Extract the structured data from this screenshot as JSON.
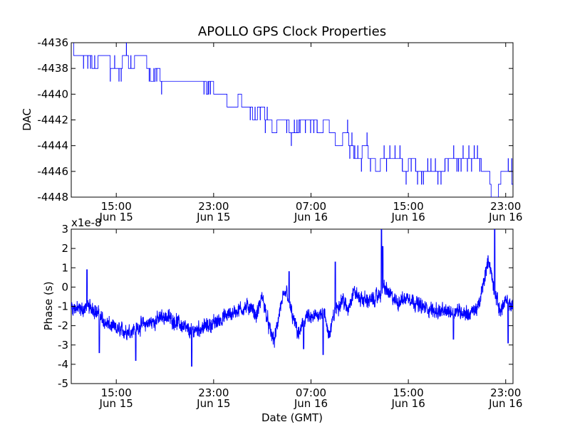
{
  "chart_data": {
    "title": "APOLLO GPS Clock Properties",
    "type": "line",
    "xlabel": "Date (GMT)",
    "x_unit": "hours from Jun 15 00:00 GMT",
    "xlim": [
      11.3,
      47.6
    ],
    "x_ticks": [
      {
        "x": 15,
        "time": "15:00",
        "date": "Jun 15"
      },
      {
        "x": 23,
        "time": "23:00",
        "date": "Jun 15"
      },
      {
        "x": 31,
        "time": "07:00",
        "date": "Jun 16"
      },
      {
        "x": 39,
        "time": "15:00",
        "date": "Jun 16"
      },
      {
        "x": 47,
        "time": "23:00",
        "date": "Jun 16"
      }
    ],
    "panels": [
      {
        "name": "dac",
        "ylabel": "DAC",
        "ylim": [
          -4448,
          -4436
        ],
        "y_ticks": [
          "-4436",
          "-4438",
          "-4440",
          "-4442",
          "-4444",
          "-4446",
          "-4448"
        ],
        "y_tick_values": [
          -4436,
          -4438,
          -4440,
          -4442,
          -4444,
          -4446,
          -4448
        ],
        "series": [
          {
            "name": "DAC",
            "color": "#0000ff",
            "style": "step",
            "steps": [
              [
                11.3,
                -4436
              ],
              [
                11.5,
                -4437
              ],
              [
                13.0,
                -4438
              ],
              [
                13.5,
                -4437
              ],
              [
                14.5,
                -4438
              ],
              [
                15.5,
                -4437
              ],
              [
                16.0,
                -4438
              ],
              [
                16.5,
                -4437
              ],
              [
                17.5,
                -4438
              ],
              [
                17.8,
                -4439
              ],
              [
                18.2,
                -4438
              ],
              [
                18.6,
                -4439
              ],
              [
                22.4,
                -4440
              ],
              [
                22.6,
                -4439
              ],
              [
                23.0,
                -4440
              ],
              [
                24.1,
                -4441
              ],
              [
                25.0,
                -4440
              ],
              [
                25.3,
                -4441
              ],
              [
                26.2,
                -4442
              ],
              [
                26.6,
                -4441
              ],
              [
                27.2,
                -4442
              ],
              [
                27.8,
                -4443
              ],
              [
                28.2,
                -4442
              ],
              [
                29.2,
                -4443
              ],
              [
                30.0,
                -4442
              ],
              [
                31.5,
                -4443
              ],
              [
                32.0,
                -4442
              ],
              [
                32.5,
                -4443
              ],
              [
                33.0,
                -4444
              ],
              [
                33.6,
                -4443
              ],
              [
                34.1,
                -4444
              ],
              [
                34.5,
                -4445
              ],
              [
                35.2,
                -4444
              ],
              [
                35.7,
                -4445
              ],
              [
                36.3,
                -4446
              ],
              [
                36.7,
                -4445
              ],
              [
                38.5,
                -4446
              ],
              [
                39.0,
                -4445
              ],
              [
                39.6,
                -4446
              ],
              [
                42.0,
                -4445
              ],
              [
                45.0,
                -4446
              ],
              [
                45.7,
                -4447
              ],
              [
                45.8,
                -4448
              ],
              [
                46.4,
                -4447
              ],
              [
                46.6,
                -4446
              ],
              [
                47.5,
                -4447
              ],
              [
                47.6,
                -4447
              ]
            ],
            "flicker_ranges": [
              [
                12.3,
                13.6
              ],
              [
                14.5,
                16.6
              ],
              [
                17.7,
                18.9
              ],
              [
                22.2,
                22.8
              ],
              [
                26.0,
                27.4
              ],
              [
                29.0,
                31.8
              ],
              [
                34.0,
                36.0
              ],
              [
                37.0,
                38.5
              ],
              [
                38.5,
                41.8
              ],
              [
                42.0,
                45.0
              ],
              [
                47.2,
                47.5
              ]
            ]
          }
        ]
      },
      {
        "name": "phase",
        "ylabel": "Phase (s)",
        "y_offset_text": "x1e-8",
        "ylim": [
          -5,
          3
        ],
        "y_ticks": [
          "3",
          "2",
          "1",
          "0",
          "-1",
          "-2",
          "-3",
          "-4",
          "-5"
        ],
        "y_tick_values": [
          3,
          2,
          1,
          0,
          -1,
          -2,
          -3,
          -4,
          -5
        ],
        "series": [
          {
            "name": "Phase",
            "color": "#0000ff",
            "style": "noisy",
            "baseline": [
              [
                11.3,
                -1.0
              ],
              [
                12.0,
                -1.2
              ],
              [
                13.0,
                -1.0
              ],
              [
                14.0,
                -1.8
              ],
              [
                15.0,
                -2.2
              ],
              [
                16.0,
                -2.3
              ],
              [
                17.0,
                -2.0
              ],
              [
                18.0,
                -1.8
              ],
              [
                19.0,
                -1.5
              ],
              [
                20.0,
                -1.8
              ],
              [
                21.0,
                -2.3
              ],
              [
                22.0,
                -2.1
              ],
              [
                23.0,
                -1.9
              ],
              [
                24.0,
                -1.5
              ],
              [
                25.0,
                -1.2
              ],
              [
                26.0,
                -1.0
              ],
              [
                26.5,
                -1.5
              ],
              [
                27.0,
                -0.5
              ],
              [
                27.6,
                -2.2
              ],
              [
                28.0,
                -2.8
              ],
              [
                28.5,
                -1.0
              ],
              [
                29.0,
                -0.2
              ],
              [
                29.5,
                -1.6
              ],
              [
                30.0,
                -2.5
              ],
              [
                30.6,
                -1.5
              ],
              [
                31.0,
                -1.7
              ],
              [
                32.0,
                -1.2
              ],
              [
                32.5,
                -2.5
              ],
              [
                33.0,
                -1.2
              ],
              [
                33.6,
                -0.6
              ],
              [
                34.0,
                -1.2
              ],
              [
                34.5,
                -0.2
              ],
              [
                35.0,
                -0.6
              ],
              [
                36.0,
                -0.7
              ],
              [
                36.5,
                -0.5
              ],
              [
                37.0,
                0.0
              ],
              [
                37.5,
                -0.4
              ],
              [
                38.0,
                -0.8
              ],
              [
                39.0,
                -0.5
              ],
              [
                40.0,
                -1.0
              ],
              [
                41.0,
                -1.2
              ],
              [
                42.0,
                -1.3
              ],
              [
                43.0,
                -1.2
              ],
              [
                44.0,
                -1.4
              ],
              [
                44.8,
                -1.0
              ],
              [
                45.2,
                0.3
              ],
              [
                45.6,
                1.5
              ],
              [
                46.0,
                0.0
              ],
              [
                46.5,
                -1.2
              ],
              [
                47.0,
                -0.8
              ],
              [
                47.6,
                -1.0
              ]
            ],
            "noise_amplitude": 0.35,
            "spikes": [
              [
                12.6,
                0.9
              ],
              [
                13.6,
                -3.4
              ],
              [
                16.6,
                -3.8
              ],
              [
                21.2,
                -4.1
              ],
              [
                29.2,
                0.8
              ],
              [
                30.4,
                -3.2
              ],
              [
                32.0,
                -3.5
              ],
              [
                33.0,
                1.3
              ],
              [
                36.8,
                3.0
              ],
              [
                36.9,
                2.1
              ],
              [
                42.7,
                -2.7
              ],
              [
                46.1,
                3.0
              ],
              [
                47.2,
                -2.9
              ]
            ]
          }
        ]
      }
    ]
  }
}
